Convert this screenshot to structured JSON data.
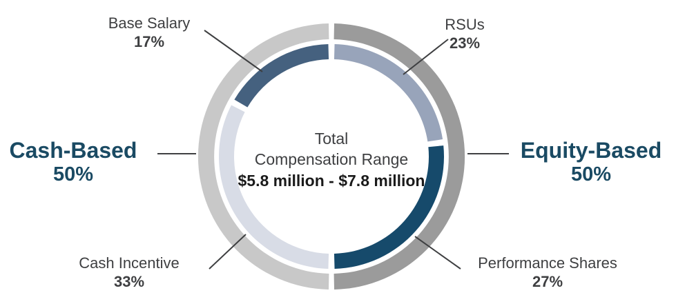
{
  "colors": {
    "background": "#ffffff",
    "label_text": "#3e3f41",
    "side_label_text": "#1a4a63",
    "range_text": "#1a1a1a",
    "leader_line": "#3e3f41"
  },
  "chart_data": {
    "type": "donut",
    "title": "Total Compensation Range",
    "center": {
      "line1": "Total",
      "line2": "Compensation Range",
      "range": "$5.8 million - $7.8 million"
    },
    "start_angle_deg": 0,
    "clockwise": true,
    "legend_position": "callouts",
    "inner_segments": [
      {
        "label": "RSUs",
        "pct_label": "23%",
        "value": 23,
        "color": "#98a4ba"
      },
      {
        "label": "Performance Shares",
        "pct_label": "27%",
        "value": 27,
        "color": "#164a6b"
      },
      {
        "label": "Cash Incentive",
        "pct_label": "33%",
        "value": 33,
        "color": "#d8dce6"
      },
      {
        "label": "Base Salary",
        "pct_label": "17%",
        "value": 17,
        "color": "#45617f"
      }
    ],
    "outer_segments": [
      {
        "label": "Equity-Based",
        "pct_label": "50%",
        "value": 50,
        "color": "#9b9b9b"
      },
      {
        "label": "Cash-Based",
        "pct_label": "50%",
        "value": 50,
        "color": "#c8c8c8"
      }
    ]
  }
}
